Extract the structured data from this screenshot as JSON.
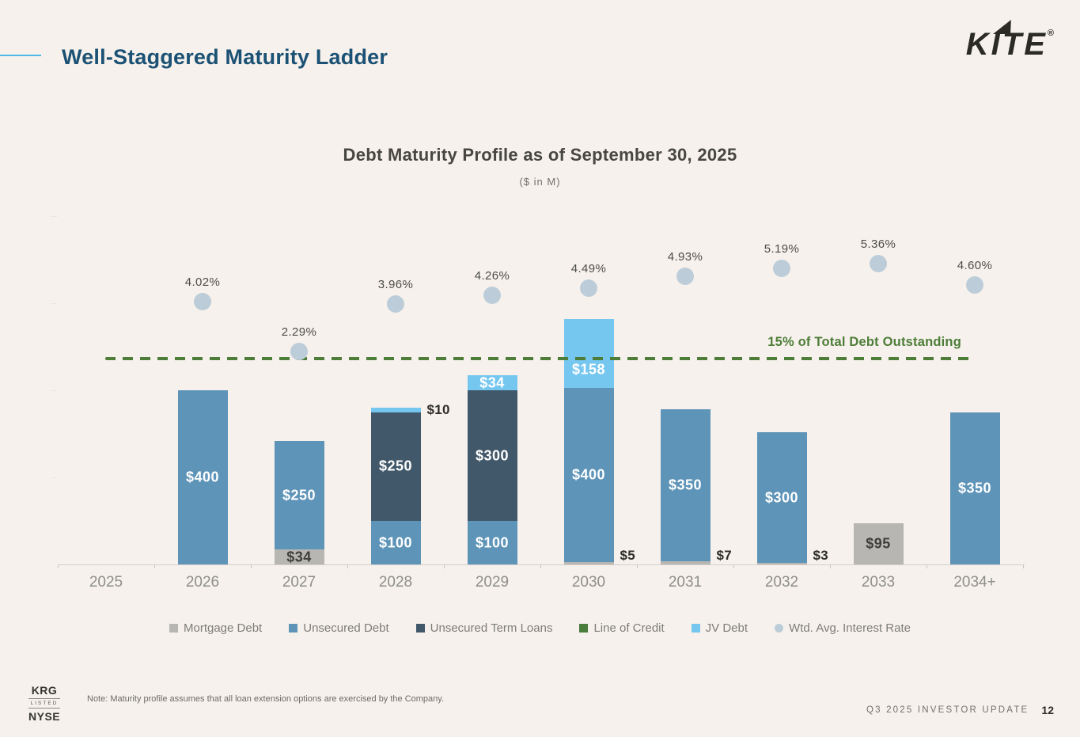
{
  "header": {
    "title": "Well-Staggered Maturity Ladder",
    "logo_text": "KITE",
    "logo_reg": "®",
    "accent_color": "#4db9e9",
    "title_color": "#1b5174"
  },
  "chart_data": {
    "type": "bar",
    "stacked": true,
    "title": "Debt Maturity Profile as of September 30, 2025",
    "subtitle": "($ in M)",
    "value_prefix": "$",
    "grid": false,
    "legend_position": "bottom",
    "ylim": [
      0,
      810
    ],
    "categories": [
      "2025",
      "2026",
      "2027",
      "2028",
      "2029",
      "2030",
      "2031",
      "2032",
      "2033",
      "2034+"
    ],
    "series": [
      {
        "key": "mortgage",
        "name": "Mortgage Debt",
        "color": "#b7b6b3",
        "label_color": "#3e3e3b",
        "values": [
          0,
          0,
          34,
          0,
          0,
          5,
          7,
          3,
          95,
          0
        ]
      },
      {
        "key": "unsecured",
        "name": "Unsecured Debt",
        "color": "#5e94b8",
        "label_color": "#ffffff",
        "values": [
          0,
          400,
          250,
          100,
          100,
          400,
          350,
          300,
          0,
          350
        ]
      },
      {
        "key": "term_loans",
        "name": "Unsecured Term Loans",
        "color": "#41586a",
        "label_color": "#ffffff",
        "values": [
          0,
          0,
          0,
          250,
          300,
          0,
          0,
          0,
          0,
          0
        ]
      },
      {
        "key": "line_of_credit",
        "name": "Line of Credit",
        "color": "#4a7c3b",
        "label_color": "#ffffff",
        "values": [
          0,
          0,
          0,
          0,
          0,
          0,
          0,
          0,
          0,
          0
        ]
      },
      {
        "key": "jv",
        "name": "JV Debt",
        "color": "#76c7f0",
        "label_color": "#ffffff",
        "values": [
          0,
          0,
          0,
          10,
          34,
          158,
          0,
          0,
          0,
          0
        ]
      }
    ],
    "rate_series": {
      "name": "Wtd. Avg. Interest Rate",
      "color": "#bccdd9",
      "values": [
        null,
        4.02,
        2.29,
        3.96,
        4.26,
        4.49,
        4.93,
        5.19,
        5.36,
        4.6
      ],
      "labels": [
        "",
        "4.02%",
        "2.29%",
        "3.96%",
        "4.26%",
        "4.49%",
        "4.93%",
        "5.19%",
        "5.36%",
        "4.60%"
      ]
    },
    "reference_line": {
      "label": "15% of Total Debt Outstanding",
      "color": "#4d7d38",
      "value": 472
    }
  },
  "footer": {
    "listing": {
      "top": "KRG",
      "middle": "LISTED",
      "bottom": "NYSE"
    },
    "note": "Note: Maturity profile assumes that all loan extension options are exercised by the Company.",
    "report_label": "Q3 2025 INVESTOR UPDATE",
    "page_number": "12"
  }
}
